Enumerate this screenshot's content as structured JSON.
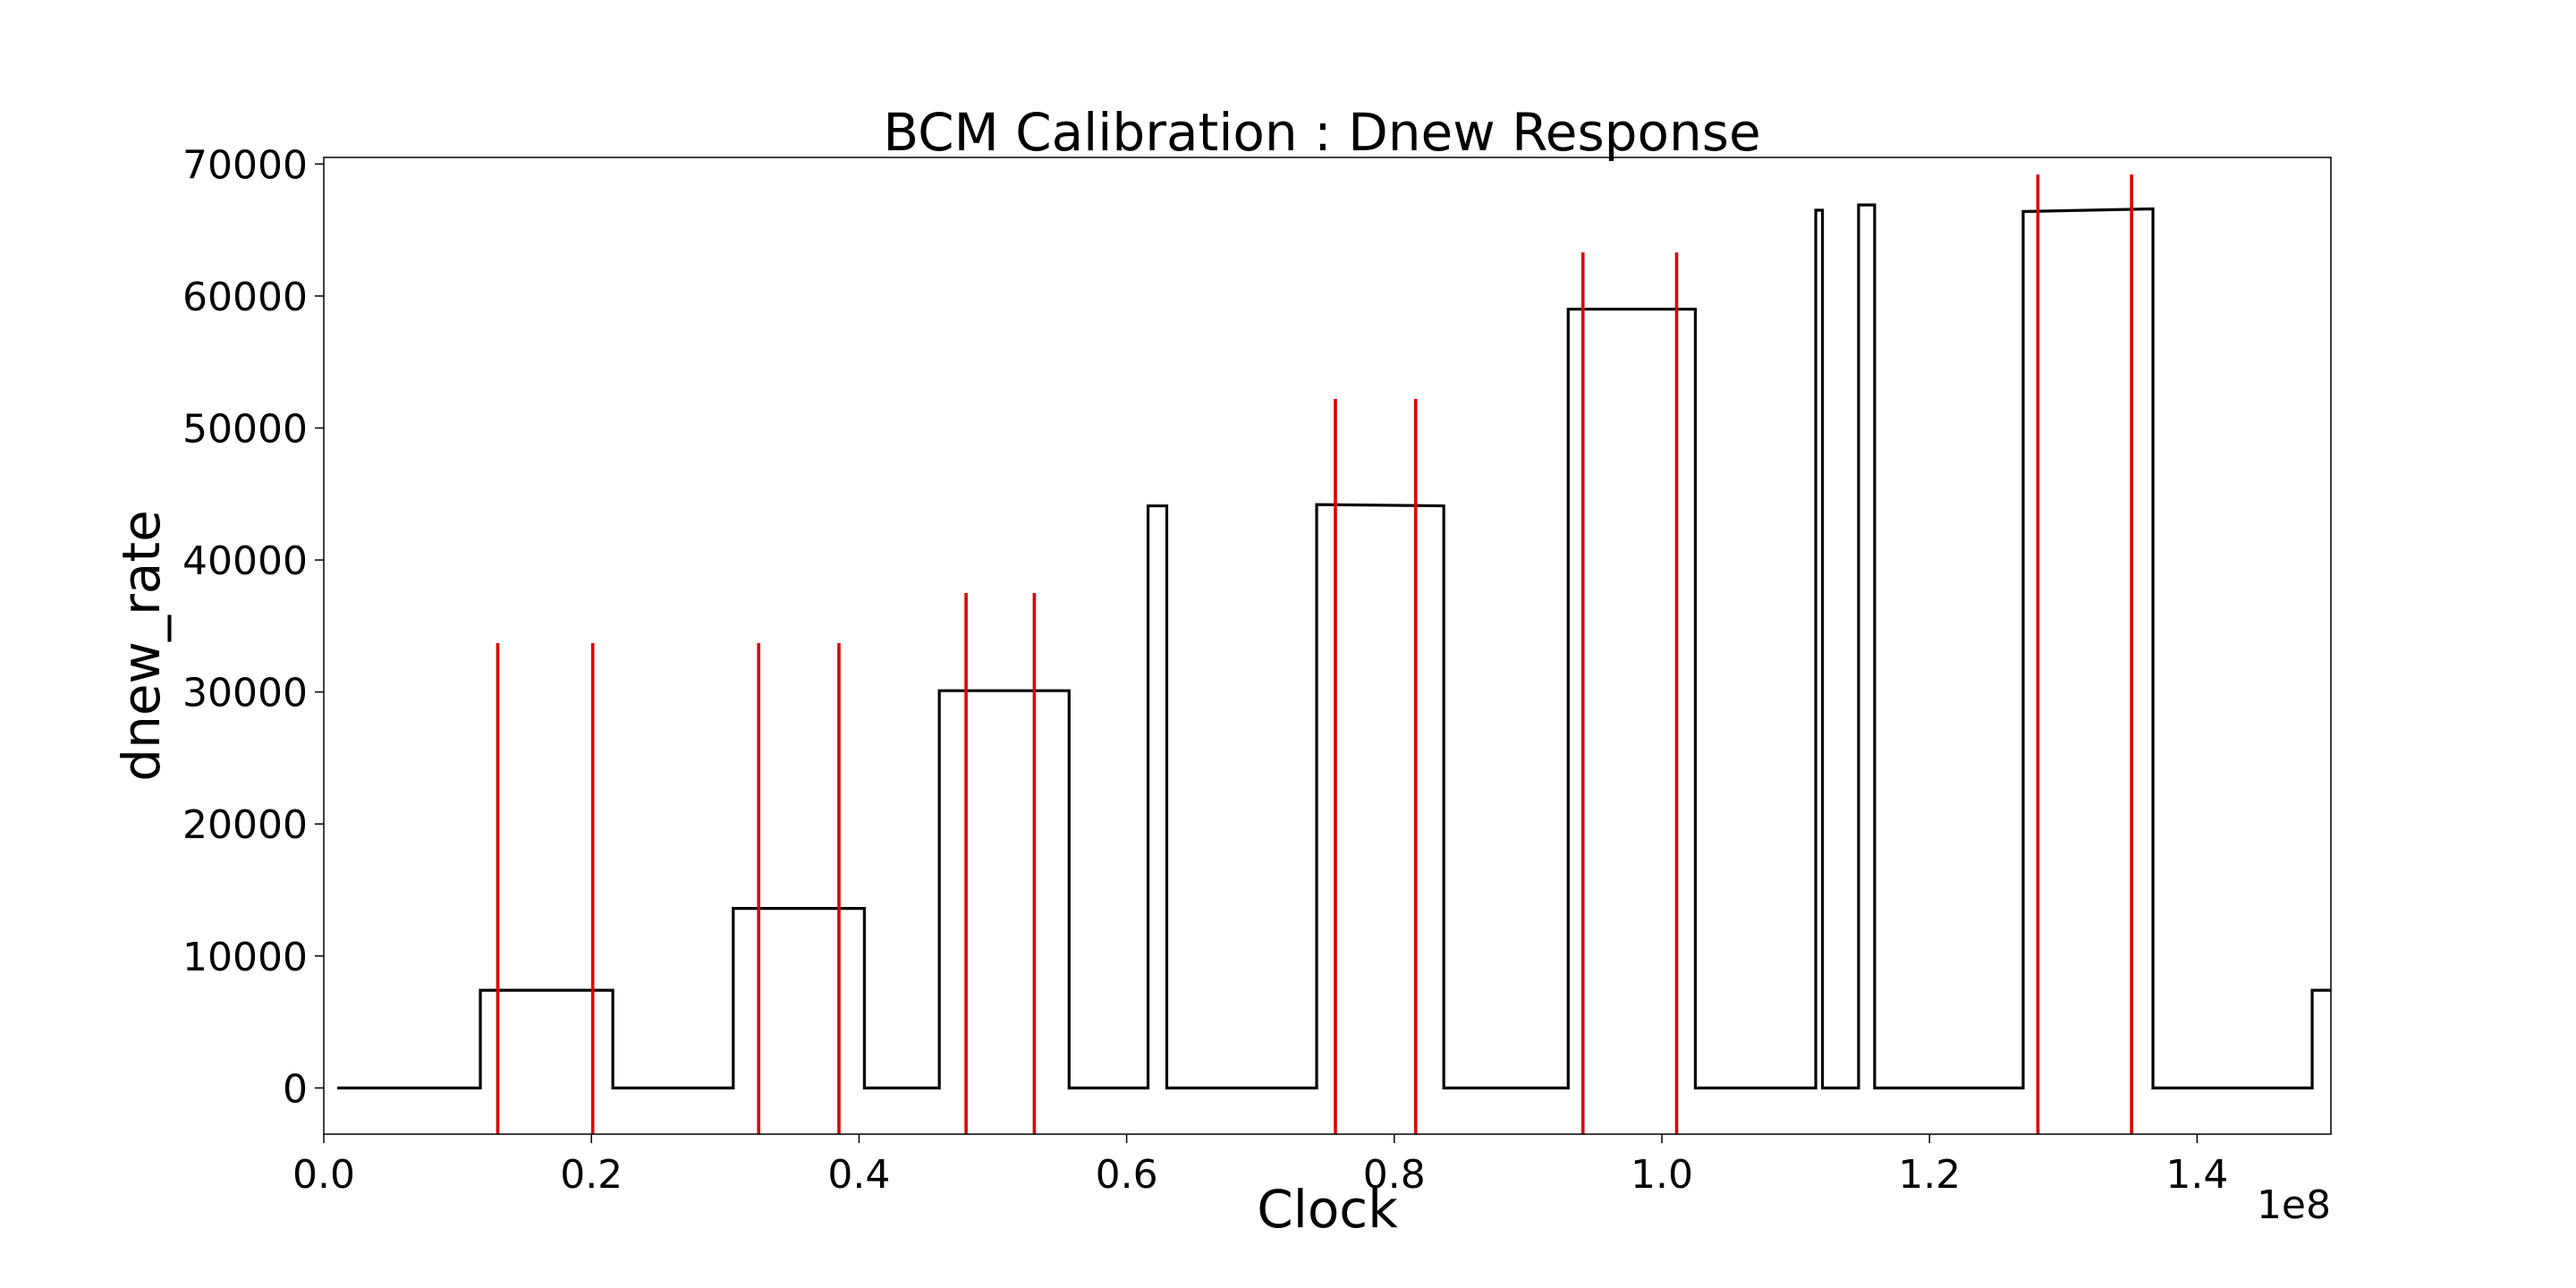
{
  "chart_data": {
    "type": "line",
    "title": "BCM Calibration : Dnew Response",
    "xlabel": "Clock",
    "ylabel": "dnew_rate",
    "x_offset_label": "1e8",
    "x_scale": 100000000,
    "xlim": [
      0,
      150000000
    ],
    "ylim": [
      -3500,
      70500
    ],
    "xticks": [
      0,
      20000000,
      40000000,
      60000000,
      80000000,
      100000000,
      120000000,
      140000000
    ],
    "xtick_labels": [
      "0.0",
      "0.2",
      "0.4",
      "0.6",
      "0.8",
      "1.0",
      "1.2",
      "1.4"
    ],
    "yticks": [
      0,
      10000,
      20000,
      30000,
      40000,
      50000,
      60000,
      70000
    ],
    "ytick_labels": [
      "0",
      "10000",
      "20000",
      "30000",
      "40000",
      "50000",
      "60000",
      "70000"
    ],
    "grid": false,
    "series": [
      {
        "color": "#000000",
        "points": [
          [
            1000000,
            0
          ],
          [
            11700000,
            0
          ],
          [
            11700000,
            7400
          ],
          [
            21600000,
            7400
          ],
          [
            21600000,
            0
          ],
          [
            30600000,
            0
          ],
          [
            30600000,
            13600
          ],
          [
            40400000,
            13600
          ],
          [
            40400000,
            0
          ],
          [
            46000000,
            0
          ],
          [
            46000000,
            30100
          ],
          [
            55700000,
            30100
          ],
          [
            55700000,
            0
          ],
          [
            61600000,
            0
          ],
          [
            61600000,
            44100
          ],
          [
            63000000,
            44100
          ],
          [
            63000000,
            0
          ],
          [
            74200000,
            0
          ],
          [
            74200000,
            44200
          ],
          [
            83700000,
            44100
          ],
          [
            83700000,
            0
          ],
          [
            93000000,
            0
          ],
          [
            93000000,
            59000
          ],
          [
            102500000,
            59000
          ],
          [
            102500000,
            0
          ],
          [
            111500000,
            0
          ],
          [
            111500000,
            66500
          ],
          [
            112000000,
            66500
          ],
          [
            112000000,
            0
          ],
          [
            114700000,
            0
          ],
          [
            114700000,
            66900
          ],
          [
            115900000,
            66900
          ],
          [
            115900000,
            0
          ],
          [
            127000000,
            0
          ],
          [
            127000000,
            66400
          ],
          [
            136700000,
            66600
          ],
          [
            136700000,
            0
          ],
          [
            148600000,
            0
          ],
          [
            148600000,
            7400
          ],
          [
            150000000,
            7400
          ]
        ]
      }
    ],
    "vlines": [
      {
        "x": 13000000,
        "ymax": 33700
      },
      {
        "x": 20100000,
        "ymax": 33700
      },
      {
        "x": 32500000,
        "ymax": 33700
      },
      {
        "x": 38500000,
        "ymax": 33700
      },
      {
        "x": 48000000,
        "ymax": 37500
      },
      {
        "x": 53100000,
        "ymax": 37500
      },
      {
        "x": 75600000,
        "ymax": 52200
      },
      {
        "x": 81600000,
        "ymax": 52200
      },
      {
        "x": 94100000,
        "ymax": 63300
      },
      {
        "x": 101100000,
        "ymax": 63300
      },
      {
        "x": 128100000,
        "ymax": 69200
      },
      {
        "x": 135100000,
        "ymax": 69200
      }
    ],
    "vline_color": "#e00000"
  }
}
